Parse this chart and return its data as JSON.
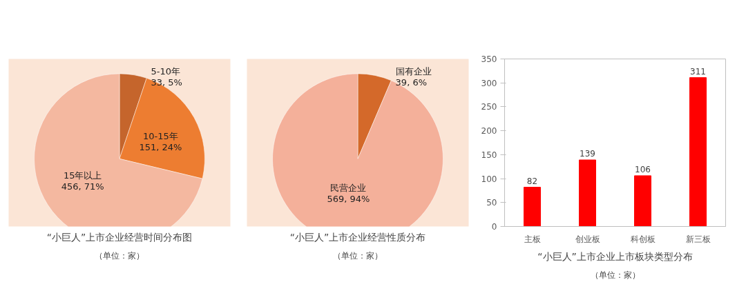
{
  "chart_data": [
    {
      "type": "pie",
      "title": "“小巨人”上市企业经营时间分布图",
      "subtitle": "（单位：家）",
      "categories": [
        "5-10年",
        "10-15年",
        "15年以上"
      ],
      "values": [
        33,
        151,
        456
      ],
      "colors": [
        "#c5652c",
        "#ed7d31",
        "#f4b8a0"
      ],
      "value_labels": [
        "33, 5%",
        "151, 24%",
        "456, 71%"
      ]
    },
    {
      "type": "pie",
      "title": "“小巨人”上市企业经营性质分布",
      "subtitle": "（单位：家）",
      "categories": [
        "国有企业",
        "民营企业"
      ],
      "values": [
        39,
        569
      ],
      "colors": [
        "#d4692a",
        "#f4b09a"
      ],
      "value_labels": [
        "39, 6%",
        "569, 94%"
      ]
    },
    {
      "type": "bar",
      "title": "“小巨人”上市企业上市板块类型分布",
      "subtitle": "（单位：家）",
      "categories": [
        "主板",
        "创业板",
        "科创板",
        "新三板"
      ],
      "values": [
        82,
        139,
        106,
        311
      ],
      "color": "#ff0000",
      "ylim": [
        0,
        350
      ],
      "yticks": [
        0,
        50,
        100,
        150,
        200,
        250,
        300,
        350
      ],
      "data_labels": true,
      "grid": false
    }
  ]
}
